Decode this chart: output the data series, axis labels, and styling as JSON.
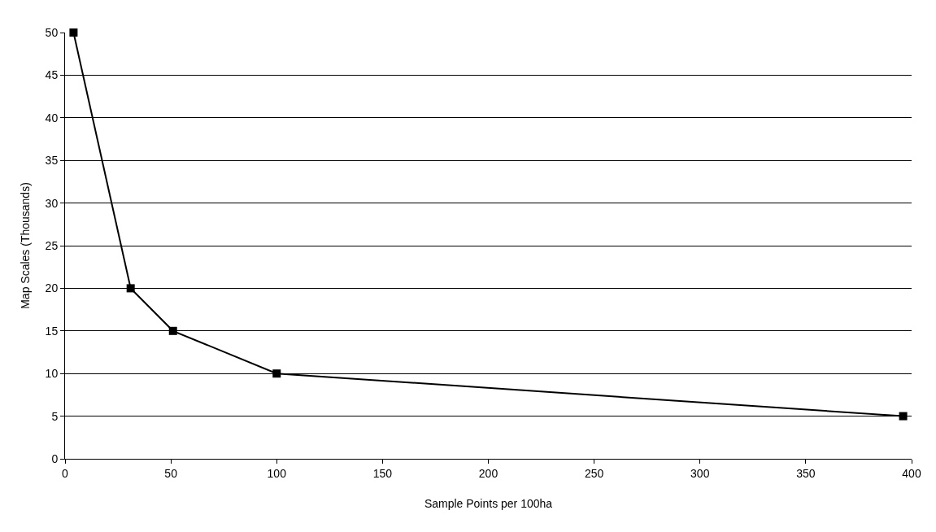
{
  "chart_data": {
    "type": "line",
    "xlabel": "Sample Points per 100ha",
    "ylabel": "Map Scales (Thousands)",
    "x": [
      4,
      31,
      51,
      100,
      396
    ],
    "series": [
      {
        "color": "#000000",
        "values": [
          50,
          20,
          15,
          10,
          5
        ]
      }
    ],
    "xlim": [
      0,
      400
    ],
    "xticks": [
      0,
      50,
      100,
      150,
      200,
      250,
      300,
      350,
      400
    ],
    "ylim": [
      0,
      50
    ],
    "yticks": [
      0,
      5,
      10,
      15,
      20,
      25,
      30,
      35,
      40,
      45,
      50
    ],
    "grid": "y",
    "marker": "square",
    "line_style": "solid"
  }
}
